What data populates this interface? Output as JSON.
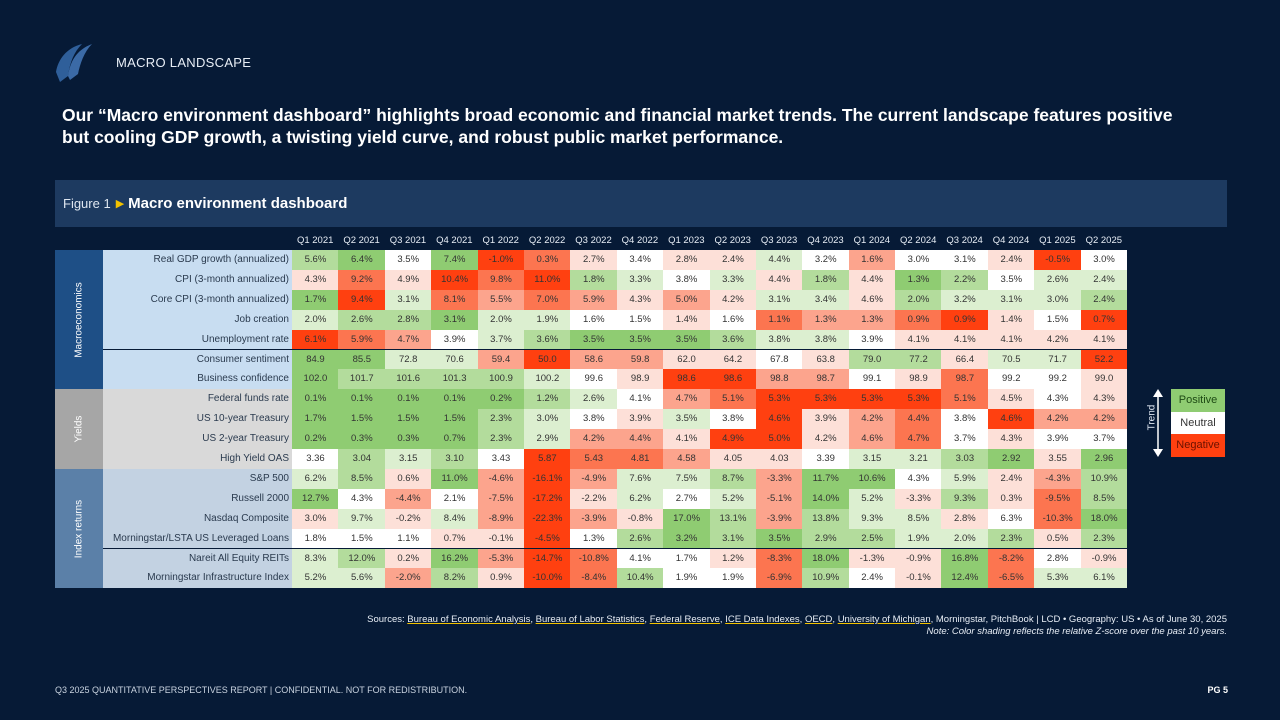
{
  "header": {
    "section": "MACRO LANDSCAPE",
    "headline": "Our “Macro environment dashboard” highlights broad economic and financial market trends. The current landscape features positive but cooling GDP growth, a twisting yield curve, and robust public market performance."
  },
  "figure": {
    "number": "Figure 1",
    "title": "Macro environment dashboard"
  },
  "colors": {
    "background": "#061a36",
    "positive": "#8fcc72",
    "neutral": "#ffffff",
    "negative": "#ff4010",
    "shade_scale": {
      "3": "#8fcc72",
      "2": "#b3dc9c",
      "1": "#dcefd0",
      "0": "#ffffff",
      "-1": "#fde0d8",
      "-2": "#fca48d",
      "-3": "#fc7550",
      "-4": "#ff4010"
    }
  },
  "table": {
    "columns": [
      "Q1 2021",
      "Q2 2021",
      "Q3 2021",
      "Q4 2021",
      "Q1 2022",
      "Q2 2022",
      "Q3 2022",
      "Q4 2022",
      "Q1 2023",
      "Q2 2023",
      "Q3 2023",
      "Q4 2023",
      "Q1 2024",
      "Q2 2024",
      "Q3 2024",
      "Q4 2024",
      "Q1 2025",
      "Q2 2025"
    ],
    "groups": [
      {
        "name": "Macroeconomics",
        "group_color": "#1e4f86",
        "label_bg": "#c8ddf1",
        "rows": [
          {
            "label": "Real GDP growth (annualized)",
            "values": [
              "5.6%",
              "6.4%",
              "3.5%",
              "7.4%",
              "-1.0%",
              "0.3%",
              "2.7%",
              "3.4%",
              "2.8%",
              "2.4%",
              "4.4%",
              "3.2%",
              "1.6%",
              "3.0%",
              "3.1%",
              "2.4%",
              "-0.5%",
              "3.0%"
            ],
            "shade": [
              2,
              3,
              0,
              3,
              -4,
              -3,
              -1,
              0,
              -1,
              -1,
              1,
              0,
              -2,
              0,
              0,
              -1,
              -4,
              0
            ]
          },
          {
            "label": "CPI (3-month annualized)",
            "values": [
              "4.3%",
              "9.2%",
              "4.9%",
              "10.4%",
              "9.8%",
              "11.0%",
              "1.8%",
              "3.3%",
              "3.8%",
              "3.3%",
              "4.4%",
              "1.8%",
              "4.4%",
              "1.3%",
              "2.2%",
              "3.5%",
              "2.6%",
              "2.4%"
            ],
            "shade": [
              -1,
              -3,
              -1,
              -4,
              -3,
              -4,
              2,
              1,
              0,
              1,
              -1,
              2,
              -1,
              3,
              2,
              0,
              1,
              1
            ]
          },
          {
            "label": "Core CPI (3-month annualized)",
            "values": [
              "1.7%",
              "9.4%",
              "3.1%",
              "8.1%",
              "5.5%",
              "7.0%",
              "5.9%",
              "4.3%",
              "5.0%",
              "4.2%",
              "3.1%",
              "3.4%",
              "4.6%",
              "2.0%",
              "3.2%",
              "3.1%",
              "3.0%",
              "2.4%"
            ],
            "shade": [
              3,
              -4,
              1,
              -3,
              -2,
              -3,
              -2,
              -1,
              -2,
              -1,
              1,
              1,
              -1,
              2,
              1,
              1,
              1,
              2
            ]
          },
          {
            "label": "Job creation",
            "values": [
              "2.0%",
              "2.6%",
              "2.8%",
              "3.1%",
              "2.0%",
              "1.9%",
              "1.6%",
              "1.5%",
              "1.4%",
              "1.6%",
              "1.1%",
              "1.3%",
              "1.3%",
              "0.9%",
              "0.9%",
              "1.4%",
              "1.5%",
              "0.7%"
            ],
            "shade": [
              1,
              2,
              2,
              3,
              1,
              1,
              0,
              0,
              -1,
              0,
              -3,
              -2,
              -2,
              -3,
              -4,
              -1,
              0,
              -4
            ]
          },
          {
            "label": "Unemployment rate",
            "values": [
              "6.1%",
              "5.9%",
              "4.7%",
              "3.9%",
              "3.7%",
              "3.6%",
              "3.5%",
              "3.5%",
              "3.5%",
              "3.6%",
              "3.8%",
              "3.8%",
              "3.9%",
              "4.1%",
              "4.1%",
              "4.1%",
              "4.2%",
              "4.1%"
            ],
            "shade": [
              -4,
              -3,
              -2,
              0,
              1,
              2,
              3,
              3,
              3,
              2,
              1,
              1,
              0,
              -1,
              -1,
              -1,
              -1,
              -1
            ]
          },
          {
            "label": "Consumer sentiment",
            "values": [
              "84.9",
              "85.5",
              "72.8",
              "70.6",
              "59.4",
              "50.0",
              "58.6",
              "59.8",
              "62.0",
              "64.2",
              "67.8",
              "63.8",
              "79.0",
              "77.2",
              "66.4",
              "70.5",
              "71.7",
              "52.2"
            ],
            "shade": [
              3,
              3,
              1,
              1,
              -2,
              -4,
              -2,
              -2,
              -1,
              -1,
              0,
              -1,
              2,
              2,
              -1,
              1,
              1,
              -4
            ]
          },
          {
            "label": "Business confidence",
            "values": [
              "102.0",
              "101.7",
              "101.6",
              "101.3",
              "100.9",
              "100.2",
              "99.6",
              "98.9",
              "98.6",
              "98.6",
              "98.8",
              "98.7",
              "99.1",
              "98.9",
              "98.7",
              "99.2",
              "99.2",
              "99.0"
            ],
            "shade": [
              3,
              2,
              2,
              2,
              2,
              1,
              0,
              -1,
              -4,
              -4,
              -2,
              -2,
              0,
              -1,
              -3,
              0,
              0,
              -1
            ]
          }
        ]
      },
      {
        "name": "Yields",
        "group_color": "#a6a6a6",
        "label_bg": "#d9d9d9",
        "rows": [
          {
            "label": "Federal funds rate",
            "values": [
              "0.1%",
              "0.1%",
              "0.1%",
              "0.1%",
              "0.2%",
              "1.2%",
              "2.6%",
              "4.1%",
              "4.7%",
              "5.1%",
              "5.3%",
              "5.3%",
              "5.3%",
              "5.3%",
              "5.1%",
              "4.5%",
              "4.3%",
              "4.3%"
            ],
            "shade": [
              3,
              3,
              3,
              3,
              3,
              2,
              1,
              0,
              -2,
              -3,
              -4,
              -4,
              -4,
              -4,
              -3,
              -1,
              0,
              -1
            ]
          },
          {
            "label": "US 10-year Treasury",
            "values": [
              "1.7%",
              "1.5%",
              "1.5%",
              "1.5%",
              "2.3%",
              "3.0%",
              "3.8%",
              "3.9%",
              "3.5%",
              "3.8%",
              "4.6%",
              "3.9%",
              "4.2%",
              "4.4%",
              "3.8%",
              "4.6%",
              "4.2%",
              "4.2%"
            ],
            "shade": [
              3,
              3,
              3,
              3,
              2,
              1,
              0,
              -1,
              1,
              0,
              -4,
              -1,
              -2,
              -3,
              0,
              -4,
              -2,
              -2
            ]
          },
          {
            "label": "US 2-year Treasury",
            "values": [
              "0.2%",
              "0.3%",
              "0.3%",
              "0.7%",
              "2.3%",
              "2.9%",
              "4.2%",
              "4.4%",
              "4.1%",
              "4.9%",
              "5.0%",
              "4.2%",
              "4.6%",
              "4.7%",
              "3.7%",
              "4.3%",
              "3.9%",
              "3.7%"
            ],
            "shade": [
              3,
              3,
              3,
              3,
              2,
              1,
              -2,
              -2,
              -1,
              -4,
              -4,
              -1,
              -2,
              -3,
              0,
              -1,
              0,
              0
            ]
          },
          {
            "label": "High Yield OAS",
            "values": [
              "3.36",
              "3.04",
              "3.15",
              "3.10",
              "3.43",
              "5.87",
              "5.43",
              "4.81",
              "4.58",
              "4.05",
              "4.03",
              "3.39",
              "3.15",
              "3.21",
              "3.03",
              "2.92",
              "3.55",
              "2.96"
            ],
            "shade": [
              0,
              2,
              1,
              2,
              0,
              -4,
              -3,
              -3,
              -2,
              -1,
              -1,
              0,
              1,
              1,
              2,
              3,
              -1,
              3
            ]
          }
        ]
      },
      {
        "name": "Index returns",
        "group_color": "#5b80a8",
        "label_bg": "#c3d2e2",
        "rows": [
          {
            "label": "S&P 500",
            "values": [
              "6.2%",
              "8.5%",
              "0.6%",
              "11.0%",
              "-4.6%",
              "-16.1%",
              "-4.9%",
              "7.6%",
              "7.5%",
              "8.7%",
              "-3.3%",
              "11.7%",
              "10.6%",
              "4.3%",
              "5.9%",
              "2.4%",
              "-4.3%",
              "10.9%"
            ],
            "shade": [
              1,
              2,
              -1,
              3,
              -2,
              -4,
              -2,
              1,
              1,
              2,
              -2,
              3,
              3,
              0,
              1,
              -1,
              -2,
              2
            ]
          },
          {
            "label": "Russell 2000",
            "values": [
              "12.7%",
              "4.3%",
              "-4.4%",
              "2.1%",
              "-7.5%",
              "-17.2%",
              "-2.2%",
              "6.2%",
              "2.7%",
              "5.2%",
              "-5.1%",
              "14.0%",
              "5.2%",
              "-3.3%",
              "9.3%",
              "0.3%",
              "-9.5%",
              "8.5%"
            ],
            "shade": [
              3,
              0,
              -2,
              0,
              -2,
              -4,
              -1,
              1,
              0,
              1,
              -2,
              3,
              1,
              -1,
              2,
              -1,
              -3,
              2
            ]
          },
          {
            "label": "Nasdaq Composite",
            "values": [
              "3.0%",
              "9.7%",
              "-0.2%",
              "8.4%",
              "-8.9%",
              "-22.3%",
              "-3.9%",
              "-0.8%",
              "17.0%",
              "13.1%",
              "-3.9%",
              "13.8%",
              "9.3%",
              "8.5%",
              "2.8%",
              "6.3%",
              "-10.3%",
              "18.0%"
            ],
            "shade": [
              -1,
              1,
              -1,
              1,
              -2,
              -4,
              -2,
              -1,
              3,
              2,
              -2,
              2,
              1,
              1,
              -1,
              0,
              -3,
              3
            ]
          },
          {
            "label": "Morningstar/LSTA US Leveraged Loans",
            "values": [
              "1.8%",
              "1.5%",
              "1.1%",
              "0.7%",
              "-0.1%",
              "-4.5%",
              "1.3%",
              "2.6%",
              "3.2%",
              "3.1%",
              "3.5%",
              "2.9%",
              "2.5%",
              "1.9%",
              "2.0%",
              "2.3%",
              "0.5%",
              "2.3%"
            ],
            "shade": [
              0,
              0,
              0,
              -1,
              -1,
              -4,
              0,
              2,
              3,
              2,
              3,
              2,
              2,
              1,
              1,
              2,
              -1,
              2
            ]
          },
          {
            "label": "Nareit All Equity REITs",
            "values": [
              "8.3%",
              "12.0%",
              "0.2%",
              "16.2%",
              "-5.3%",
              "-14.7%",
              "-10.8%",
              "4.1%",
              "1.7%",
              "1.2%",
              "-8.3%",
              "18.0%",
              "-1.3%",
              "-0.9%",
              "16.8%",
              "-8.2%",
              "2.8%",
              "-0.9%"
            ],
            "shade": [
              1,
              2,
              -1,
              3,
              -2,
              -4,
              -3,
              0,
              0,
              -1,
              -3,
              3,
              -1,
              -1,
              3,
              -3,
              0,
              -1
            ]
          },
          {
            "label": "Morningstar Infrastructure Index",
            "values": [
              "5.2%",
              "5.6%",
              "-2.0%",
              "8.2%",
              "0.9%",
              "-10.0%",
              "-8.4%",
              "10.4%",
              "1.9%",
              "1.9%",
              "-6.9%",
              "10.9%",
              "2.4%",
              "-0.1%",
              "12.4%",
              "-6.5%",
              "5.3%",
              "6.1%"
            ],
            "shade": [
              1,
              1,
              -2,
              2,
              -1,
              -4,
              -3,
              2,
              0,
              0,
              -3,
              2,
              0,
              -1,
              3,
              -3,
              1,
              1
            ]
          }
        ]
      }
    ]
  },
  "legend": {
    "trend_label": "Trend",
    "items": [
      "Positive",
      "Neutral",
      "Negative"
    ]
  },
  "sources": {
    "prefix": "Sources: ",
    "links": [
      "Bureau of Economic Analysis",
      "Bureau of Labor Statistics",
      "Federal Reserve",
      "ICE Data Indexes",
      "OECD",
      "University of Michigan"
    ],
    "suffix": ", Morningstar, PitchBook | LCD  •  Geography: US  •  As of June 30, 2025",
    "note": "Note: Color shading reflects the relative Z-score over the past 10 years."
  },
  "footer": {
    "report": "Q3 2025 QUANTITATIVE PERSPECTIVES REPORT | CONFIDENTIAL. NOT FOR REDISTRIBUTION.",
    "page": "PG 5"
  }
}
